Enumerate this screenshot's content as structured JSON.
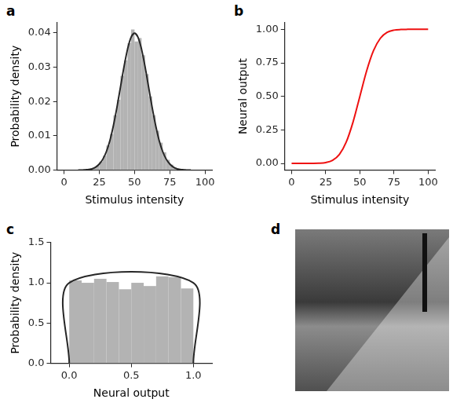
{
  "chart_data": [
    {
      "panel": "a",
      "type": "histogram",
      "x_label": "Stimulus intensity",
      "y_label": "Probability density",
      "bins": [
        20,
        22.5,
        25,
        27.5,
        30,
        32.5,
        35,
        37.5,
        40,
        42.5,
        45,
        47.5,
        50,
        52.5,
        55,
        57.5,
        60,
        62.5,
        65,
        67.5,
        70,
        72.5,
        75,
        77.5,
        80
      ],
      "values": [
        0.0008,
        0.0013,
        0.0025,
        0.0042,
        0.0072,
        0.0105,
        0.016,
        0.0205,
        0.0275,
        0.032,
        0.037,
        0.041,
        0.0375,
        0.0385,
        0.0335,
        0.028,
        0.0215,
        0.016,
        0.0115,
        0.008,
        0.0052,
        0.003,
        0.0016,
        0.0008
      ],
      "color": "#b3b3b3",
      "curve": {
        "x": [
          10,
          12.5,
          15,
          17.5,
          20,
          22.5,
          25,
          27.5,
          30,
          32.5,
          35,
          37.5,
          40,
          42.5,
          45,
          47.5,
          50,
          52.5,
          55,
          57.5,
          60,
          62.5,
          65,
          67.5,
          70,
          72.5,
          75,
          77.5,
          80,
          82.5,
          85,
          87.5,
          90
        ],
        "values": [
          0,
          0,
          0.0001,
          0.0002,
          0.0004,
          0.0009,
          0.0018,
          0.0032,
          0.0054,
          0.0086,
          0.013,
          0.0183,
          0.0242,
          0.0301,
          0.0352,
          0.0387,
          0.0399,
          0.0387,
          0.0352,
          0.0301,
          0.0242,
          0.0183,
          0.013,
          0.0086,
          0.0054,
          0.0032,
          0.0018,
          0.0009,
          0.0004,
          0.0002,
          0.0001,
          0,
          0
        ],
        "color": "#262626"
      },
      "xlim": [
        -5,
        105
      ],
      "xticks": [
        0,
        25,
        50,
        75,
        100
      ],
      "ylim": [
        0,
        0.043
      ],
      "yticks": [
        {
          "value": 0,
          "label": "0.00"
        },
        {
          "value": 0.01,
          "label": "0.01"
        },
        {
          "value": 0.02,
          "label": "0.02"
        },
        {
          "value": 0.03,
          "label": "0.03"
        },
        {
          "value": 0.04,
          "label": "0.04"
        }
      ],
      "grid": false
    },
    {
      "panel": "b",
      "type": "line",
      "x_label": "Stimulus intensity",
      "y_label": "Neural output",
      "x": [
        0,
        5,
        10,
        15,
        20,
        25,
        30,
        35,
        40,
        45,
        50,
        55,
        60,
        65,
        70,
        75,
        80,
        85,
        90,
        95,
        100
      ],
      "values": [
        0,
        0,
        0,
        0.0002,
        0.0013,
        0.0062,
        0.0228,
        0.0668,
        0.1587,
        0.3085,
        0.5,
        0.6915,
        0.8413,
        0.9332,
        0.9772,
        0.9938,
        0.9987,
        0.9998,
        1,
        1,
        1
      ],
      "color": "#ee1111",
      "xlim": [
        -5,
        105
      ],
      "xticks": [
        0,
        25,
        50,
        75,
        100
      ],
      "ylim": [
        -0.05,
        1.05
      ],
      "yticks": [
        {
          "value": 0,
          "label": "0.00"
        },
        {
          "value": 0.25,
          "label": "0.25"
        },
        {
          "value": 0.5,
          "label": "0.50"
        },
        {
          "value": 0.75,
          "label": "0.75"
        },
        {
          "value": 1,
          "label": "1.00"
        }
      ],
      "grid": false
    },
    {
      "panel": "c",
      "type": "histogram",
      "x_label": "Neural output",
      "y_label": "Probability density",
      "bins": [
        0,
        0.1,
        0.2,
        0.3,
        0.4,
        0.5,
        0.6,
        0.7,
        0.8,
        0.9,
        1.0
      ],
      "values": [
        1.03,
        1.0,
        1.05,
        1.01,
        0.92,
        1.0,
        0.96,
        1.08,
        1.07,
        0.93
      ],
      "color": "#b3b3b3",
      "curve": {
        "x": [
          0,
          0,
          1,
          1
        ],
        "values": [
          0,
          1,
          1,
          0
        ],
        "color": "#262626"
      },
      "xlim": [
        -0.15,
        1.15
      ],
      "xticks": [
        {
          "value": 0,
          "label": "0.0"
        },
        {
          "value": 0.5,
          "label": "0.5"
        },
        {
          "value": 1,
          "label": "1.0"
        }
      ],
      "ylim": [
        0,
        1.5
      ],
      "yticks": [
        {
          "value": 0,
          "label": "0.0"
        },
        {
          "value": 0.5,
          "label": "0.5"
        },
        {
          "value": 1,
          "label": "1.0"
        },
        {
          "value": 1.5,
          "label": "1.5"
        }
      ],
      "grid": false
    }
  ],
  "image_panel": {
    "panel": "d"
  }
}
